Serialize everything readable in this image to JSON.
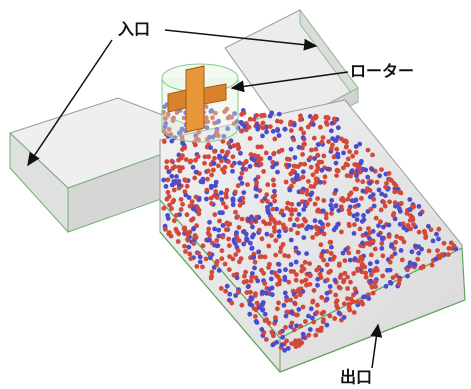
{
  "labels": {
    "inlet": "入口",
    "rotor": "ローター",
    "outlet": "出口"
  }
}
